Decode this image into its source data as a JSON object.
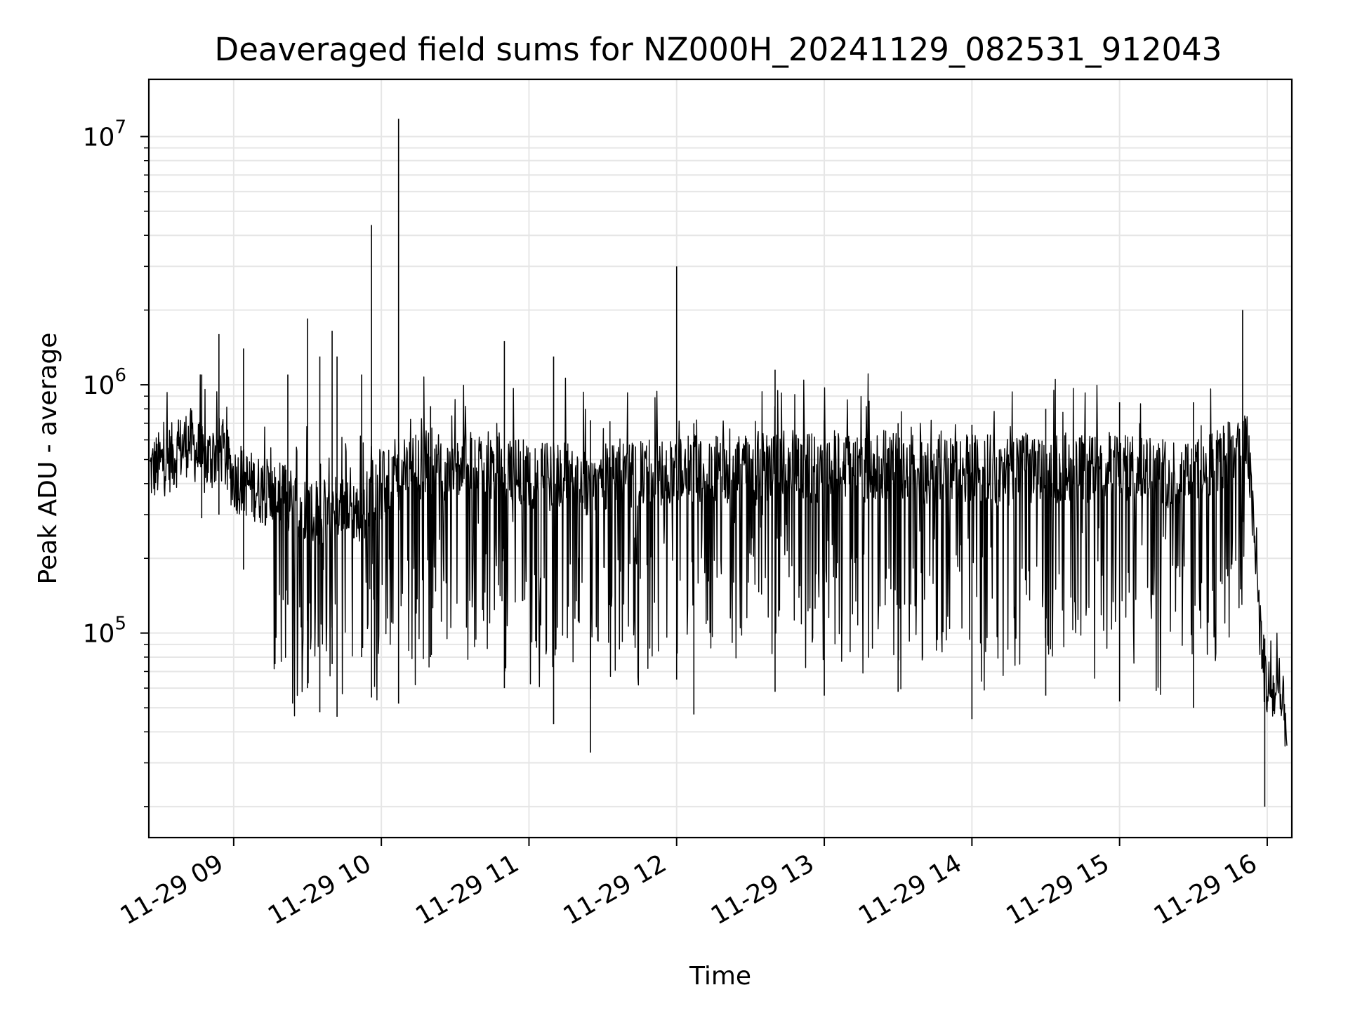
{
  "chart_data": {
    "type": "line",
    "title": "Deaveraged field sums for NZ000H_20241129_082531_912043",
    "xlabel": "Time",
    "ylabel": "Peak ADU - average",
    "y_scale": "log",
    "ylim": [
      15000,
      17000000
    ],
    "xlim": [
      "2024-11-29 08:25:31",
      "2024-11-29 16:10:00"
    ],
    "grid": true,
    "x_ticks": [
      {
        "t": "2024-11-29 09:00",
        "label": "11-29 09"
      },
      {
        "t": "2024-11-29 10:00",
        "label": "11-29 10"
      },
      {
        "t": "2024-11-29 11:00",
        "label": "11-29 11"
      },
      {
        "t": "2024-11-29 12:00",
        "label": "11-29 12"
      },
      {
        "t": "2024-11-29 13:00",
        "label": "11-29 13"
      },
      {
        "t": "2024-11-29 14:00",
        "label": "11-29 14"
      },
      {
        "t": "2024-11-29 15:00",
        "label": "11-29 15"
      },
      {
        "t": "2024-11-29 16:00",
        "label": "11-29 16"
      }
    ],
    "y_ticks": [
      {
        "value": 100000,
        "base": "10",
        "exp": "5"
      },
      {
        "value": 1000000,
        "base": "10",
        "exp": "6"
      },
      {
        "value": 10000000,
        "base": "10",
        "exp": "7"
      }
    ],
    "line_color": "#000000",
    "grid_color": "#e6e6e6",
    "series": [
      {
        "x": [
          "2024-11-29 08:26",
          "2024-11-29 08:36",
          "2024-11-29 08:42",
          "2024-11-29 08:48",
          "2024-11-29 08:55",
          "2024-11-29 09:00",
          "2024-11-29 09:06",
          "2024-11-29 09:10",
          "2024-11-29 09:16",
          "2024-11-29 09:20",
          "2024-11-29 09:24",
          "2024-11-29 09:27",
          "2024-11-29 09:31",
          "2024-11-29 09:34",
          "2024-11-29 09:37",
          "2024-11-29 09:40",
          "2024-11-29 09:43",
          "2024-11-29 09:47",
          "2024-11-29 09:50",
          "2024-11-29 09:53",
          "2024-11-29 09:56",
          "2024-11-29 10:00",
          "2024-11-29 10:04",
          "2024-11-29 10:06",
          "2024-11-29 10:10",
          "2024-11-29 10:14",
          "2024-11-29 10:20",
          "2024-11-29 10:25",
          "2024-11-29 10:30",
          "2024-11-29 10:35",
          "2024-11-29 10:40",
          "2024-11-29 10:46",
          "2024-11-29 10:50",
          "2024-11-29 10:55",
          "2024-11-29 11:00",
          "2024-11-29 11:05",
          "2024-11-29 11:08",
          "2024-11-29 11:12",
          "2024-11-29 11:15",
          "2024-11-29 11:18",
          "2024-11-29 11:22",
          "2024-11-29 11:25",
          "2024-11-29 11:30",
          "2024-11-29 11:35",
          "2024-11-29 11:40",
          "2024-11-29 11:45",
          "2024-11-29 11:50",
          "2024-11-29 11:55",
          "2024-11-29 12:00",
          "2024-11-29 12:05",
          "2024-11-29 12:10",
          "2024-11-29 12:15",
          "2024-11-29 12:20",
          "2024-11-29 12:25",
          "2024-11-29 12:30",
          "2024-11-29 12:35",
          "2024-11-29 12:40",
          "2024-11-29 12:45",
          "2024-11-29 12:50",
          "2024-11-29 12:55",
          "2024-11-29 13:00",
          "2024-11-29 13:05",
          "2024-11-29 13:10",
          "2024-11-29 13:15",
          "2024-11-29 13:20",
          "2024-11-29 13:25",
          "2024-11-29 13:30",
          "2024-11-29 13:35",
          "2024-11-29 13:40",
          "2024-11-29 13:45",
          "2024-11-29 13:50",
          "2024-11-29 13:55",
          "2024-11-29 14:00",
          "2024-11-29 14:05",
          "2024-11-29 14:10",
          "2024-11-29 14:15",
          "2024-11-29 14:20",
          "2024-11-29 14:25",
          "2024-11-29 14:30",
          "2024-11-29 14:35",
          "2024-11-29 14:40",
          "2024-11-29 14:45",
          "2024-11-29 14:50",
          "2024-11-29 14:55",
          "2024-11-29 15:00",
          "2024-11-29 15:05",
          "2024-11-29 15:10",
          "2024-11-29 15:15",
          "2024-11-29 15:20",
          "2024-11-29 15:25",
          "2024-11-29 15:30",
          "2024-11-29 15:35",
          "2024-11-29 15:40",
          "2024-11-29 15:45",
          "2024-11-29 15:50",
          "2024-11-29 15:52",
          "2024-11-29 15:54",
          "2024-11-29 15:56",
          "2024-11-29 15:58",
          "2024-11-29 16:00",
          "2024-11-29 16:04",
          "2024-11-29 16:08"
        ],
        "y": [
          450000,
          520000,
          600000,
          480000,
          550000,
          420000,
          400000,
          380000,
          360000,
          350000,
          340000,
          330000,
          320000,
          310000,
          300000,
          320000,
          330000,
          350000,
          300000,
          320000,
          380000,
          390000,
          400000,
          420000,
          440000,
          460000,
          480000,
          470000,
          460000,
          470000,
          480000,
          470000,
          460000,
          450000,
          440000,
          430000,
          420000,
          440000,
          430000,
          420000,
          410000,
          400000,
          430000,
          450000,
          440000,
          430000,
          450000,
          440000,
          460000,
          470000,
          450000,
          460000,
          440000,
          470000,
          480000,
          470000,
          460000,
          480000,
          470000,
          460000,
          470000,
          480000,
          470000,
          460000,
          470000,
          480000,
          470000,
          460000,
          450000,
          470000,
          460000,
          450000,
          460000,
          470000,
          460000,
          450000,
          470000,
          460000,
          450000,
          460000,
          470000,
          460000,
          450000,
          470000,
          460000,
          450000,
          460000,
          450000,
          440000,
          450000,
          460000,
          480000,
          500000,
          520000,
          550000,
          580000,
          300000,
          150000,
          80000,
          60000,
          55000,
          45000
        ],
        "spikes": [
          {
            "t": "2024-11-29 08:47",
            "low": 290000,
            "high": 1100000
          },
          {
            "t": "2024-11-29 08:54",
            "low": 300000,
            "high": 1600000
          },
          {
            "t": "2024-11-29 09:04",
            "low": 180000,
            "high": 1400000
          },
          {
            "t": "2024-11-29 09:22",
            "low": 130000,
            "high": 1100000
          },
          {
            "t": "2024-11-29 09:30",
            "low": 60000,
            "high": 1850000
          },
          {
            "t": "2024-11-29 09:35",
            "low": 48000,
            "high": 1300000
          },
          {
            "t": "2024-11-29 09:40",
            "low": 75000,
            "high": 1650000
          },
          {
            "t": "2024-11-29 09:42",
            "low": 46000,
            "high": 1300000
          },
          {
            "t": "2024-11-29 09:52",
            "low": 80000,
            "high": 1100000
          },
          {
            "t": "2024-11-29 09:56",
            "low": 55000,
            "high": 4400000
          },
          {
            "t": "2024-11-29 10:07",
            "low": 52000,
            "high": 11800000
          },
          {
            "t": "2024-11-29 10:20",
            "low": 80000,
            "high": 820000
          },
          {
            "t": "2024-11-29 10:50",
            "low": 60000,
            "high": 1500000
          },
          {
            "t": "2024-11-29 11:10",
            "low": 43000,
            "high": 1300000
          },
          {
            "t": "2024-11-29 11:25",
            "low": 33000,
            "high": 720000
          },
          {
            "t": "2024-11-29 12:00",
            "low": 65000,
            "high": 3000000
          },
          {
            "t": "2024-11-29 12:07",
            "low": 47000,
            "high": 700000
          },
          {
            "t": "2024-11-29 12:40",
            "low": 58000,
            "high": 1150000
          },
          {
            "t": "2024-11-29 13:00",
            "low": 56000,
            "high": 720000
          },
          {
            "t": "2024-11-29 13:30",
            "low": 58000,
            "high": 700000
          },
          {
            "t": "2024-11-29 14:00",
            "low": 45000,
            "high": 690000
          },
          {
            "t": "2024-11-29 14:30",
            "low": 56000,
            "high": 800000
          },
          {
            "t": "2024-11-29 15:00",
            "low": 53000,
            "high": 850000
          },
          {
            "t": "2024-11-29 15:30",
            "low": 50000,
            "high": 850000
          },
          {
            "t": "2024-11-29 15:50",
            "low": 280000,
            "high": 2000000
          },
          {
            "t": "2024-11-29 15:59",
            "low": 20000,
            "high": 95000
          }
        ]
      }
    ]
  }
}
